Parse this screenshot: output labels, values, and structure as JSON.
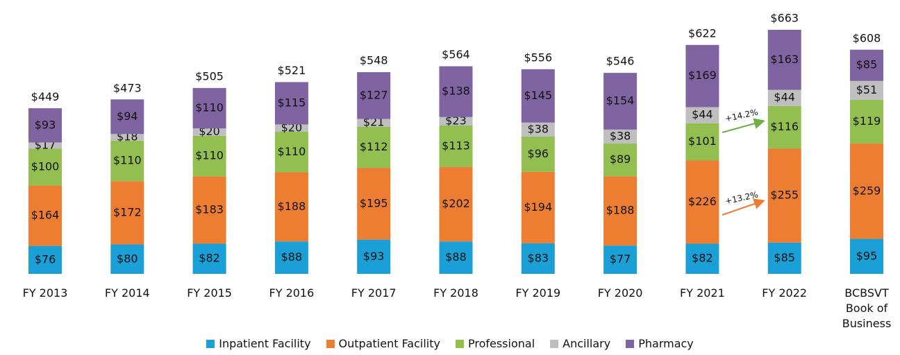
{
  "chart_data": {
    "type": "stacked_bar",
    "categories": [
      "FY 2013",
      "FY 2014",
      "FY 2015",
      "FY 2016",
      "FY 2017",
      "FY 2018",
      "FY 2019",
      "FY 2020",
      "FY 2021",
      "FY 2022",
      "BCBSVT Book of Business"
    ],
    "series": [
      {
        "name": "Inpatient Facility",
        "color": "#1a9fd6",
        "values": [
          76,
          80,
          82,
          88,
          93,
          88,
          83,
          77,
          82,
          85,
          95
        ],
        "value_labels": [
          "$76",
          "$80",
          "$82",
          "$88",
          "$93",
          "$88",
          "$83",
          "$77",
          "$82",
          "$85",
          "$95"
        ]
      },
      {
        "name": "Outpatient Facility",
        "color": "#ed7d31",
        "values": [
          164,
          172,
          183,
          188,
          195,
          202,
          194,
          188,
          226,
          255,
          259
        ],
        "value_labels": [
          "$164",
          "$172",
          "$183",
          "$188",
          "$195",
          "$202",
          "$194",
          "$188",
          "$226",
          "$255",
          "$259"
        ]
      },
      {
        "name": "Professional",
        "color": "#92bf4f",
        "values": [
          100,
          110,
          110,
          110,
          112,
          113,
          96,
          89,
          101,
          116,
          119
        ],
        "value_labels": [
          "$100",
          "$110",
          "$110",
          "$110",
          "$112",
          "$113",
          "$96",
          "$89",
          "$101",
          "$116",
          "$119"
        ]
      },
      {
        "name": "Ancillary",
        "color": "#bfbfbf",
        "values": [
          17,
          18,
          20,
          20,
          21,
          23,
          38,
          38,
          44,
          44,
          51
        ],
        "value_labels": [
          "$17",
          "$18",
          "$20",
          "$20",
          "$21",
          "$23",
          "$38",
          "$38",
          "$44",
          "$44",
          "$51"
        ]
      },
      {
        "name": "Pharmacy",
        "color": "#8064a2",
        "values": [
          93,
          94,
          110,
          115,
          127,
          138,
          145,
          154,
          169,
          163,
          85
        ],
        "value_labels": [
          "$93",
          "$94",
          "$110",
          "$115",
          "$127",
          "$138",
          "$145",
          "$154",
          "$169",
          "$163",
          "$85"
        ]
      }
    ],
    "totals": [
      449,
      473,
      505,
      521,
      548,
      564,
      556,
      546,
      622,
      663,
      608
    ],
    "total_labels": [
      "$449",
      "$473",
      "$505",
      "$521",
      "$548",
      "$564",
      "$556",
      "$546",
      "$622",
      "$663",
      "$608"
    ],
    "annotations": [
      {
        "text": "+14.2%",
        "color": "#70ad47"
      },
      {
        "text": "+13.2%",
        "color": "#ed7d31"
      }
    ]
  }
}
